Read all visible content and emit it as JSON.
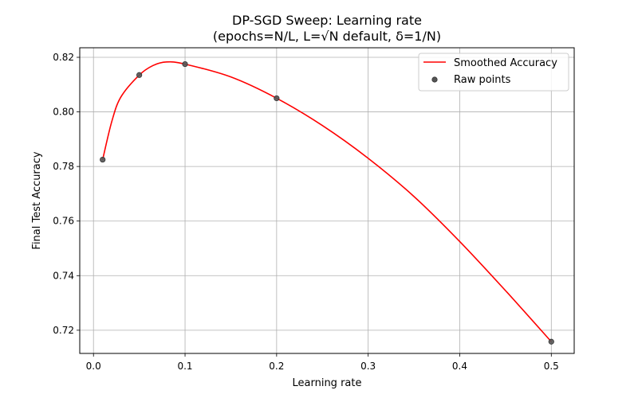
{
  "chart_data": {
    "type": "line",
    "title_line1": "DP-SGD Sweep: Learning rate",
    "title_line2": "(epochs=N/L, L=√N default, δ=1/N)",
    "xlabel": "Learning rate",
    "ylabel": "Final Test Accuracy",
    "xlim": [
      -0.015,
      0.525
    ],
    "ylim": [
      0.7115,
      0.8235
    ],
    "xticks": [
      0.0,
      0.1,
      0.2,
      0.3,
      0.4,
      0.5
    ],
    "xtick_labels": [
      "0.0",
      "0.1",
      "0.2",
      "0.3",
      "0.4",
      "0.5"
    ],
    "yticks": [
      0.72,
      0.74,
      0.76,
      0.78,
      0.8,
      0.82
    ],
    "ytick_labels": [
      "0.72",
      "0.74",
      "0.76",
      "0.78",
      "0.80",
      "0.82"
    ],
    "grid": true,
    "legend_position": "top-right",
    "series": [
      {
        "name": "Smoothed Accuracy",
        "kind": "line",
        "color": "#ff0000",
        "x": [
          0.01,
          0.02,
          0.03,
          0.05,
          0.065,
          0.08,
          0.1,
          0.15,
          0.2,
          0.25,
          0.3,
          0.35,
          0.4,
          0.45,
          0.5
        ],
        "y": [
          0.7825,
          0.7965,
          0.8055,
          0.8135,
          0.817,
          0.8183,
          0.8175,
          0.8128,
          0.805,
          0.795,
          0.783,
          0.769,
          0.7525,
          0.7345,
          0.7158
        ]
      },
      {
        "name": "Raw points",
        "kind": "scatter",
        "color": "#555555",
        "x": [
          0.01,
          0.05,
          0.1,
          0.2,
          0.5
        ],
        "y": [
          0.7825,
          0.8135,
          0.8175,
          0.805,
          0.7158
        ]
      }
    ]
  }
}
